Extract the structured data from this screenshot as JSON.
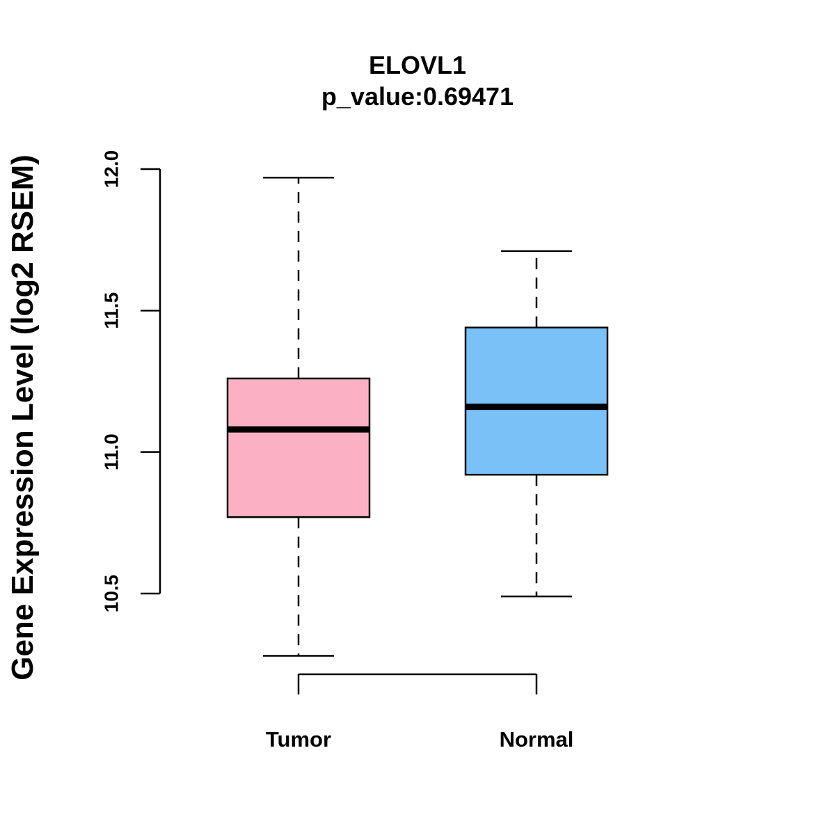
{
  "chart_data": {
    "type": "boxplot",
    "title": "ELOVL1",
    "subtitle": "p_value:0.69471",
    "xlabel": "",
    "ylabel": "Gene Expression Level (log2 RSEM)",
    "ylim": [
      10.5,
      12.0
    ],
    "yticks": [
      "10.5",
      "11.0",
      "11.5",
      "12.0"
    ],
    "categories": [
      "Tumor",
      "Normal"
    ],
    "grid": false,
    "series": [
      {
        "category": "Tumor",
        "whisker_low": 10.28,
        "q1": 10.77,
        "median": 11.08,
        "q3": 11.26,
        "whisker_high": 11.97,
        "color": "#FBB1C3"
      },
      {
        "category": "Normal",
        "whisker_low": 10.49,
        "q1": 10.92,
        "median": 11.16,
        "q3": 11.44,
        "whisker_high": 11.71,
        "color": "#79C1F7"
      }
    ]
  }
}
